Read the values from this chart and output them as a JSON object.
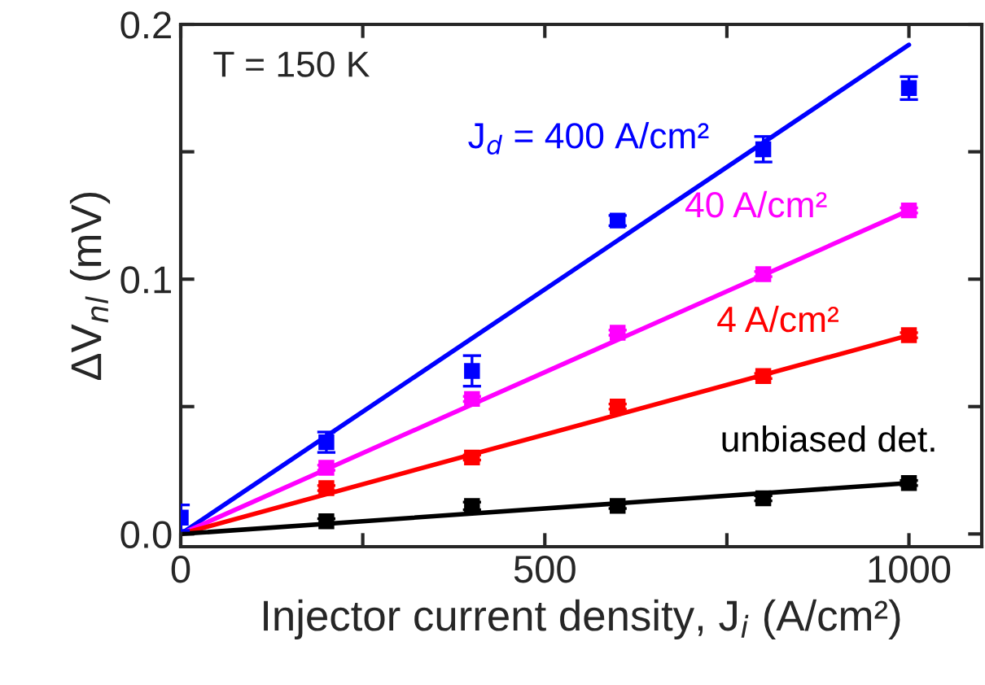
{
  "chart_data": {
    "type": "scatter",
    "xlabel": "Injector current density, J$_{i}$ (A/cm²)",
    "ylabel": "ΔV$_{nl}$ (mV)",
    "annotations": [
      "T = 150 K"
    ],
    "xlim": [
      0,
      1100
    ],
    "ylim": [
      -0.005,
      0.2
    ],
    "xticks": [
      0,
      {
        "value": 250,
        "label": null
      },
      500,
      {
        "value": 750,
        "label": null
      },
      1000
    ],
    "yticks": [
      {
        "value": 0,
        "label": "0.0"
      },
      {
        "value": 0.05,
        "label": null
      },
      {
        "value": 0.1,
        "label": "0.1"
      },
      {
        "value": 0.15,
        "label": null
      },
      {
        "value": 0.2,
        "label": "0.2"
      }
    ],
    "grid": false,
    "legend": false,
    "marker": "square",
    "series": [
      {
        "name": "J$_{d}$ = 400 A/cm²",
        "color": "#0000ff",
        "x": [
          0,
          200,
          400,
          600,
          800,
          1000
        ],
        "values": [
          0.0064,
          0.036,
          0.064,
          0.123,
          0.151,
          0.175
        ],
        "errors": [
          0.005,
          0.004,
          0.006,
          0.002,
          0.005,
          0.0045
        ]
      },
      {
        "name": "40 A/cm²",
        "color": "#ff00ff",
        "x": [
          200,
          400,
          600,
          800,
          1000
        ],
        "values": [
          0.026,
          0.053,
          0.079,
          0.102,
          0.127
        ],
        "errors": [
          0.001,
          0.001,
          0.001,
          0.001,
          0.001
        ]
      },
      {
        "name": "4 A/cm²",
        "color": "#ff0000",
        "x": [
          200,
          400,
          600,
          800,
          1000
        ],
        "values": [
          0.018,
          0.03,
          0.05,
          0.062,
          0.078
        ],
        "errors": [
          0.001,
          0.001,
          0.001,
          0.001,
          0.001
        ]
      },
      {
        "name": "unbiased det.",
        "color": "#000000",
        "x": [
          200,
          400,
          600,
          800,
          1000
        ],
        "values": [
          0.005,
          0.011,
          0.011,
          0.014,
          0.02
        ],
        "errors": [
          0.001,
          0.0015,
          0.001,
          0.001,
          0.001
        ]
      },
      {
        "type": "line",
        "marker": "none",
        "color": "#0000ff",
        "x": [
          0,
          1000
        ],
        "values": [
          0,
          0.192
        ]
      },
      {
        "type": "line",
        "marker": "none",
        "color": "#ff00ff",
        "x": [
          0,
          1000
        ],
        "values": [
          0,
          0.127
        ]
      },
      {
        "type": "line",
        "marker": "none",
        "color": "#ff0000",
        "x": [
          0,
          1000
        ],
        "values": [
          0,
          0.078
        ]
      },
      {
        "type": "line",
        "marker": "none",
        "color": "#000000",
        "x": [
          0,
          1000
        ],
        "values": [
          0,
          0.02
        ]
      }
    ]
  }
}
